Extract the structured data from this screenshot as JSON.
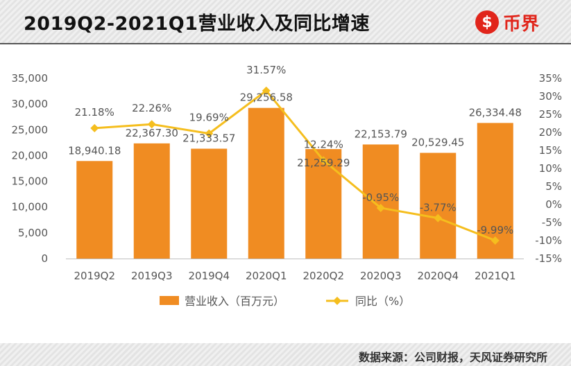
{
  "header": {
    "title": "2019Q2-2021Q1营业收入及同比增速",
    "logo_symbol": "$",
    "logo_text": "币界"
  },
  "footer": {
    "source": "数据来源：公司财报，天风证券研究所"
  },
  "colors": {
    "bar": "#F08C22",
    "line": "#F5BE1E",
    "logo": "#E1251B"
  },
  "chart_data": {
    "type": "bar+line",
    "categories": [
      "2019Q2",
      "2019Q3",
      "2019Q4",
      "2020Q1",
      "2020Q2",
      "2020Q3",
      "2020Q4",
      "2021Q1"
    ],
    "series": [
      {
        "name": "营业收入（百万元）",
        "type": "bar",
        "axis": "left",
        "values": [
          18940.18,
          22367.3,
          21333.57,
          29256.58,
          21259.29,
          22153.79,
          20529.45,
          26334.48
        ],
        "labels": [
          "18,940.18",
          "22,367.30",
          "21,333.57",
          "29,256.58",
          "21,259.29",
          "22,153.79",
          "20,529.45",
          "26,334.48"
        ]
      },
      {
        "name": "同比（%）",
        "type": "line",
        "axis": "right",
        "values": [
          21.18,
          22.26,
          19.69,
          31.57,
          12.24,
          -0.95,
          -3.77,
          -9.99
        ],
        "labels": [
          "21.18%",
          "22.26%",
          "19.69%",
          "31.57%",
          "12.24%",
          "-0.95%",
          "-3.77%",
          "-9.99%"
        ]
      }
    ],
    "y_left": {
      "min": 0,
      "max": 35000,
      "ticks": [
        "0",
        "5,000",
        "10,000",
        "15,000",
        "20,000",
        "25,000",
        "30,000",
        "35,000"
      ]
    },
    "y_right": {
      "min": -15,
      "max": 35,
      "ticks": [
        "-15%",
        "-10%",
        "-5%",
        "0%",
        "5%",
        "10%",
        "15%",
        "20%",
        "25%",
        "30%",
        "35%"
      ]
    },
    "legend": [
      "营业收入（百万元）",
      "同比（%）"
    ],
    "legend_position": "bottom",
    "grid": false
  }
}
